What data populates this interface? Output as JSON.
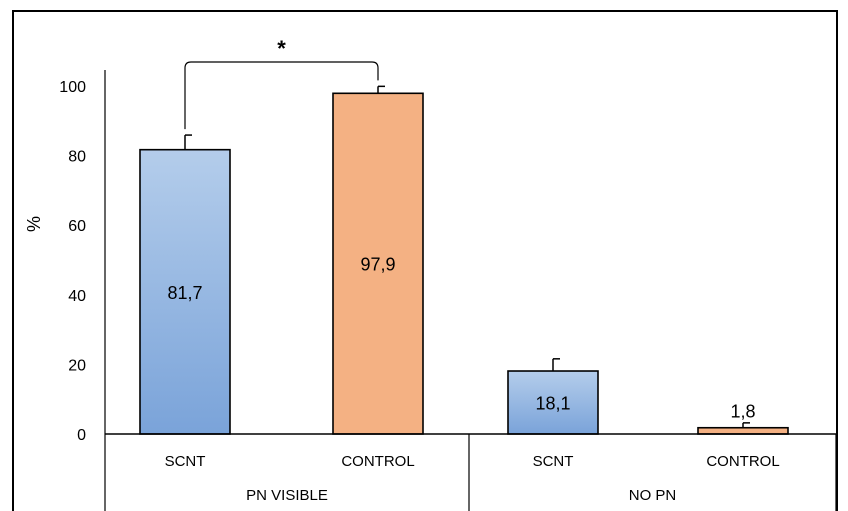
{
  "chart_data": {
    "type": "bar",
    "ylabel": "%",
    "ylim": [
      0,
      100
    ],
    "yticks": [
      0,
      20,
      40,
      60,
      80,
      100
    ],
    "groups": [
      {
        "label": "PN VISIBLE",
        "categories": [
          "SCNT",
          "CONTROL"
        ]
      },
      {
        "label": "NO PN",
        "categories": [
          "SCNT",
          "CONTROL"
        ]
      }
    ],
    "bars": [
      {
        "group": "PN VISIBLE",
        "category": "SCNT",
        "value": 81.7,
        "error": 4.2,
        "label": "81,7",
        "color": "#8fb3e0"
      },
      {
        "group": "PN VISIBLE",
        "category": "CONTROL",
        "value": 97.9,
        "error": 2.0,
        "label": "97,9",
        "color": "#f4b183"
      },
      {
        "group": "NO PN",
        "category": "SCNT",
        "value": 18.1,
        "error": 3.5,
        "label": "18,1",
        "color": "#8fb3e0"
      },
      {
        "group": "NO PN",
        "category": "CONTROL",
        "value": 1.8,
        "error": 1.4,
        "label": "1,8",
        "color": "#f4b183"
      }
    ],
    "annotation": {
      "text": "*",
      "between": [
        "PN VISIBLE SCNT",
        "PN VISIBLE CONTROL"
      ]
    },
    "grid": false
  }
}
